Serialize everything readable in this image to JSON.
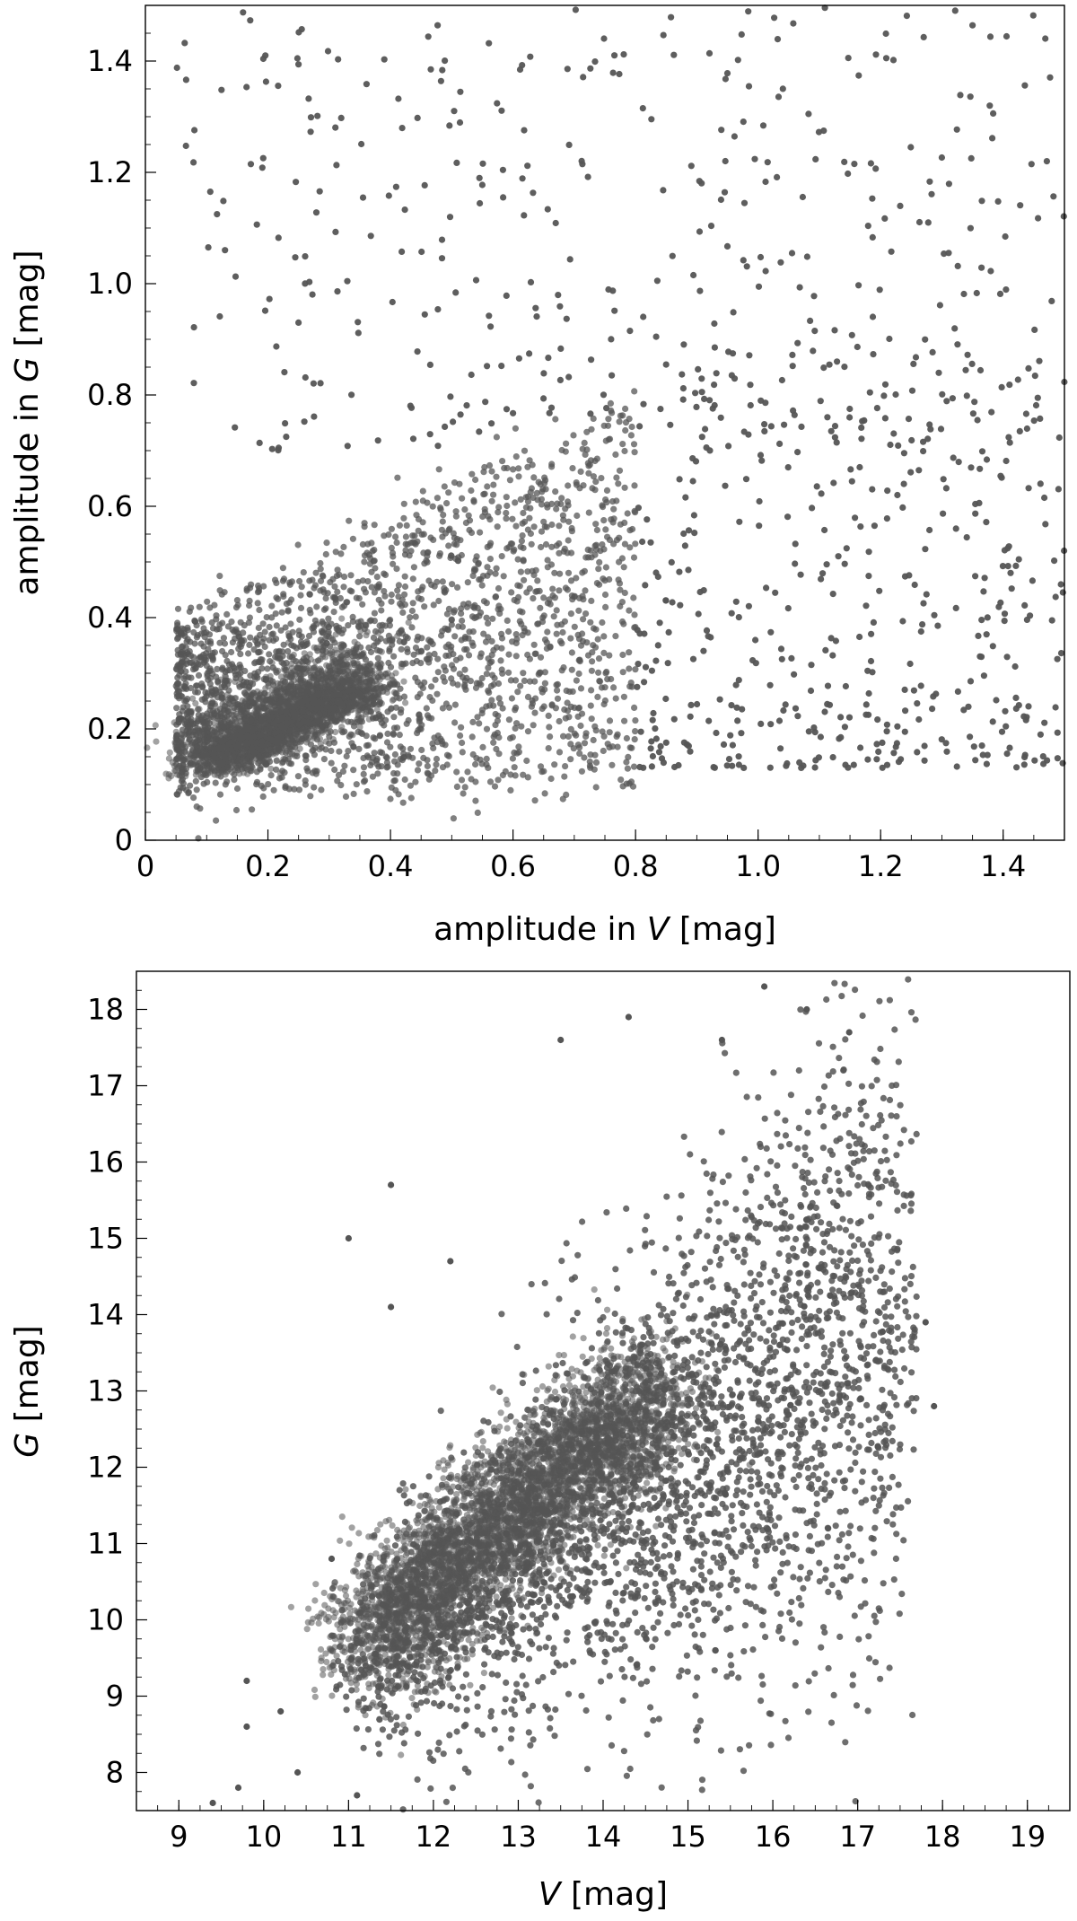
{
  "chart_data": [
    {
      "type": "scatter",
      "title": "",
      "xlabel": {
        "prefix": "amplitude in ",
        "var": "V",
        "suffix": " [mag]"
      },
      "ylabel": {
        "prefix": "amplitude in ",
        "var": "G",
        "suffix": " [mag]"
      },
      "xlim": [
        0,
        1.5
      ],
      "ylim": [
        0,
        1.5
      ],
      "xticks": [
        0,
        0.2,
        0.4,
        0.6,
        0.8,
        1.0,
        1.2,
        1.4
      ],
      "xtick_labels": [
        "0",
        "0.2",
        "0.4",
        "0.6",
        "0.8",
        "1.0",
        "1.2",
        "1.4"
      ],
      "yticks": [
        0,
        0.2,
        0.4,
        0.6,
        0.8,
        1.0,
        1.2,
        1.4
      ],
      "ytick_labels": [
        "0",
        "0.2",
        "0.4",
        "0.6",
        "0.8",
        "1.0",
        "1.2",
        "1.4"
      ],
      "grid": false,
      "color": "#555555",
      "density": {
        "dense_core": {
          "x": [
            0.1,
            0.35
          ],
          "y": [
            0.1,
            0.28
          ]
        },
        "main_cloud": {
          "x": [
            0.05,
            0.8
          ],
          "y": [
            0.05,
            0.8
          ]
        },
        "sparse_tail": {
          "x": [
            0.8,
            1.5
          ],
          "y": [
            0.12,
            1.5
          ]
        }
      },
      "series": [
        {
          "x": [
            0.12,
            0.15,
            0.18,
            0.2,
            0.22,
            0.25,
            0.28,
            0.3,
            0.33,
            0.35,
            0.38,
            0.4,
            0.42,
            0.45,
            0.48,
            0.5,
            0.52,
            0.55,
            0.58,
            0.6,
            0.62,
            0.65,
            0.68,
            0.7,
            0.72,
            0.75,
            0.78,
            0.8,
            0.82,
            0.85,
            0.88,
            0.9,
            0.92,
            0.95,
            0.98,
            1.0,
            1.02,
            1.05,
            1.08,
            1.1,
            1.12,
            1.15,
            1.18,
            1.2,
            1.22,
            1.25,
            1.28,
            1.3,
            1.32,
            1.35,
            1.38,
            1.4,
            1.42,
            1.45,
            1.48,
            0.1,
            0.14,
            0.3,
            0.5,
            0.7,
            1.0,
            1.2,
            1.35
          ],
          "y": [
            0.12,
            0.14,
            0.15,
            0.16,
            0.18,
            0.2,
            0.22,
            0.24,
            0.26,
            0.28,
            0.3,
            0.32,
            0.34,
            0.36,
            0.38,
            0.4,
            0.42,
            0.44,
            0.46,
            0.48,
            0.5,
            0.52,
            0.54,
            0.55,
            0.56,
            0.58,
            0.6,
            0.62,
            0.55,
            0.5,
            0.45,
            0.42,
            0.4,
            0.38,
            0.35,
            0.33,
            0.3,
            0.28,
            0.26,
            0.25,
            0.24,
            0.23,
            0.22,
            0.21,
            0.2,
            0.19,
            0.18,
            0.18,
            0.17,
            0.16,
            0.15,
            0.2,
            0.22,
            0.18,
            0.16,
            0.95,
            1.3,
            1.1,
            1.45,
            1.2,
            1.5,
            1.3,
            1.45
          ]
        }
      ]
    },
    {
      "type": "scatter",
      "title": "",
      "xlabel": {
        "prefix": "",
        "var": "V",
        "suffix": " [mag]"
      },
      "ylabel": {
        "prefix": "",
        "var": "G",
        "suffix": " [mag]"
      },
      "xlim": [
        8.5,
        19.5
      ],
      "ylim": [
        7.5,
        18.5
      ],
      "xticks": [
        9,
        10,
        11,
        12,
        13,
        14,
        15,
        16,
        17,
        18,
        19
      ],
      "xtick_labels": [
        "9",
        "10",
        "11",
        "12",
        "13",
        "14",
        "15",
        "16",
        "17",
        "18",
        "19"
      ],
      "yticks": [
        8,
        9,
        10,
        11,
        12,
        13,
        14,
        15,
        16,
        17,
        18
      ],
      "ytick_labels": [
        "8",
        "9",
        "10",
        "11",
        "12",
        "13",
        "14",
        "15",
        "16",
        "17",
        "18"
      ],
      "grid": false,
      "color": "#555555",
      "density": {
        "dense_core": {
          "x": [
            11.2,
            14.5
          ],
          "y": [
            9.5,
            13.2
          ]
        },
        "main_cloud": {
          "x": [
            11.0,
            17.6
          ],
          "y": [
            8.0,
            17.5
          ]
        }
      },
      "series": [
        {
          "x": [
            9.4,
            9.7,
            9.8,
            10.2,
            10.4,
            10.8,
            11.0,
            11.1,
            11.2,
            11.5,
            11.8,
            12.0,
            12.3,
            12.5,
            12.8,
            13.0,
            13.3,
            13.5,
            13.8,
            14.0,
            14.3,
            14.5,
            14.8,
            15.0,
            15.3,
            15.5,
            15.8,
            16.0,
            16.3,
            16.5,
            16.8,
            17.0,
            17.3,
            17.5,
            17.9,
            11.0,
            11.5,
            13.5,
            14.3,
            15.9
          ],
          "y": [
            7.6,
            7.8,
            9.2,
            8.8,
            8.0,
            10.8,
            8.2,
            7.7,
            9.0,
            9.8,
            10.2,
            10.6,
            11.0,
            11.2,
            11.6,
            11.9,
            12.2,
            12.4,
            12.7,
            12.9,
            13.2,
            13.4,
            13.7,
            13.9,
            14.2,
            14.4,
            14.6,
            14.8,
            15.0,
            15.2,
            15.3,
            14.6,
            14.0,
            13.5,
            12.8,
            15.0,
            15.7,
            17.5,
            17.9,
            18.3
          ]
        }
      ]
    }
  ]
}
